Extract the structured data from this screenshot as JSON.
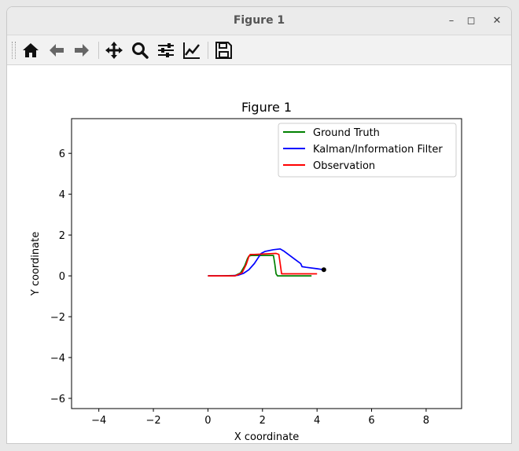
{
  "window": {
    "title": "Figure 1"
  },
  "toolbar": {
    "buttons": [
      "home-icon",
      "back-arrow-icon",
      "forward-arrow-icon",
      "pan-icon",
      "zoom-icon",
      "configure-subplots-icon",
      "edit-axis-icon",
      "save-icon"
    ]
  },
  "chart_data": {
    "type": "line",
    "title": "Figure 1",
    "xlabel": "X coordinate",
    "ylabel": "Y coordinate",
    "xlim": [
      -5.0,
      9.3
    ],
    "ylim": [
      -6.5,
      7.7
    ],
    "xticks": [
      -4,
      -2,
      0,
      2,
      4,
      6,
      8
    ],
    "yticks": [
      -6,
      -4,
      -2,
      0,
      2,
      4,
      6
    ],
    "xtick_labels": [
      "−4",
      "−2",
      "0",
      "2",
      "4",
      "6",
      "8"
    ],
    "ytick_labels": [
      "−6",
      "−4",
      "−2",
      "0",
      "2",
      "4",
      "6"
    ],
    "legend_position": "upper right",
    "series": [
      {
        "name": "Ground Truth",
        "color": "#008000",
        "x": [
          0,
          0.5,
          1.0,
          1.2,
          1.35,
          1.45,
          1.5,
          1.6,
          2.0,
          2.4,
          2.45,
          2.5,
          2.55,
          3.0,
          3.5,
          3.8
        ],
        "y": [
          0,
          0,
          0.02,
          0.15,
          0.5,
          0.85,
          0.97,
          1.0,
          1.0,
          1.0,
          0.6,
          0.1,
          0.0,
          0.0,
          0.0,
          0.0
        ]
      },
      {
        "name": "Kalman/Information Filter",
        "color": "#0000ff",
        "x": [
          0,
          0.8,
          1.1,
          1.3,
          1.5,
          1.7,
          1.85,
          1.95,
          2.1,
          2.4,
          2.65,
          2.8,
          2.95,
          3.2,
          3.4,
          3.45,
          3.6,
          4.0,
          4.25
        ],
        "y": [
          0,
          0,
          0.03,
          0.12,
          0.3,
          0.6,
          0.9,
          1.1,
          1.2,
          1.28,
          1.32,
          1.2,
          1.05,
          0.8,
          0.6,
          0.45,
          0.42,
          0.35,
          0.3
        ]
      },
      {
        "name": "Observation",
        "color": "#ff0000",
        "x": [
          0,
          1.0,
          1.25,
          1.4,
          1.5,
          1.55,
          1.7,
          2.5,
          2.6,
          2.65,
          2.7,
          3.0,
          4.0
        ],
        "y": [
          0,
          0,
          0.15,
          0.55,
          0.95,
          1.05,
          1.05,
          1.1,
          1.05,
          0.6,
          0.1,
          0.1,
          0.1
        ]
      }
    ],
    "current_point": {
      "x": 4.25,
      "y": 0.3,
      "color": "#000000"
    }
  }
}
